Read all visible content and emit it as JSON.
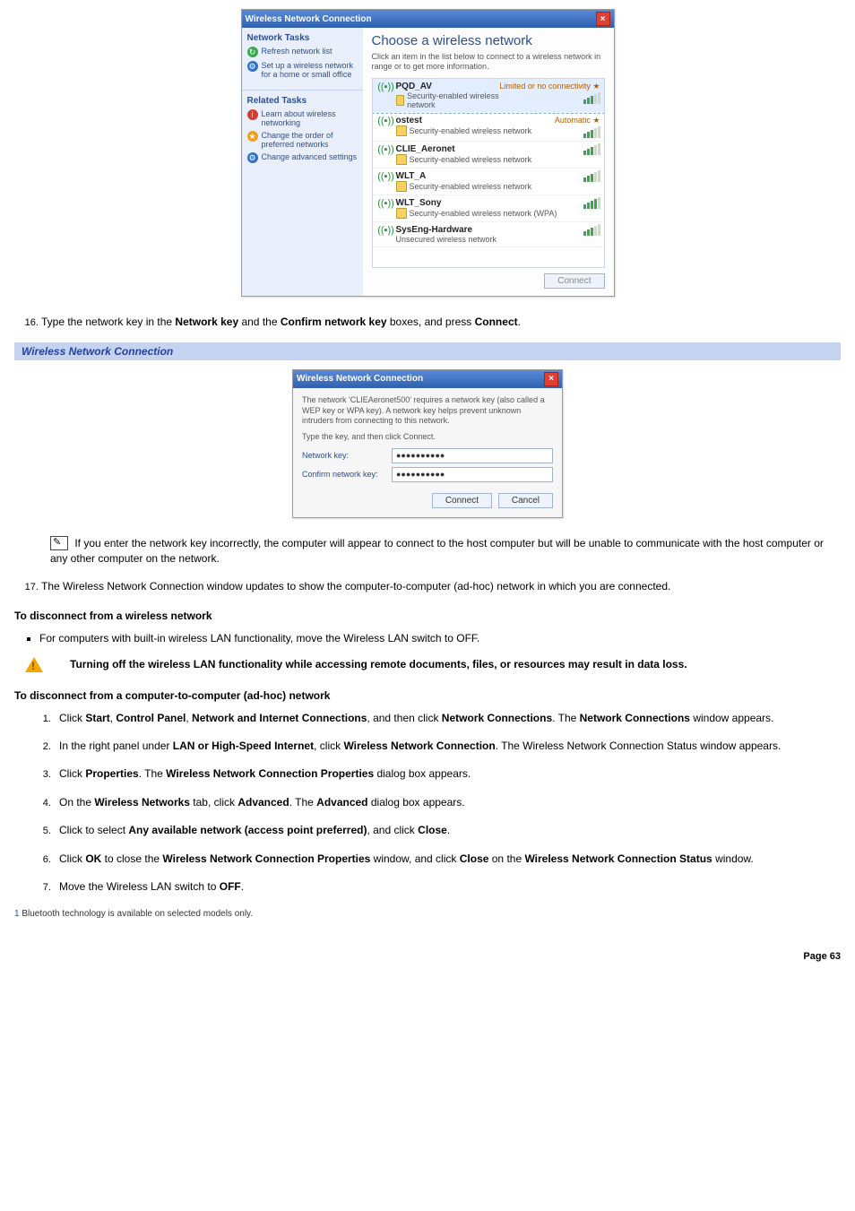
{
  "shot1": {
    "title": "Wireless Network Connection",
    "side": {
      "heading1": "Network Tasks",
      "item1": "Refresh network list",
      "item2": "Set up a wireless network for a home or small office",
      "heading2": "Related Tasks",
      "item3": "Learn about wireless networking",
      "item4": "Change the order of preferred networks",
      "item5": "Change advanced settings"
    },
    "mainTitle": "Choose a wireless network",
    "mainSub": "Click an item in the list below to connect to a wireless network in range or to get more information.",
    "connectBtn": "Connect",
    "networks": [
      {
        "name": "PQD_AV",
        "selected": true,
        "type": "Security-enabled wireless network",
        "badge": "Limited or no connectivity",
        "bars": 3
      },
      {
        "name": "ostest",
        "type": "Security-enabled wireless network",
        "badge": "Automatic",
        "bars": 3
      },
      {
        "name": "CLIE_Aeronet",
        "type": "Security-enabled wireless network",
        "badge": "",
        "bars": 3
      },
      {
        "name": "WLT_A",
        "type": "Security-enabled wireless network",
        "badge": "",
        "bars": 3
      },
      {
        "name": "WLT_Sony",
        "type": "Security-enabled wireless network (WPA)",
        "badge": "",
        "bars": 4
      },
      {
        "name": "SysEng-Hardware",
        "type": "Unsecured wireless network",
        "badge": "",
        "bars": 3,
        "unsecured": true
      }
    ]
  },
  "step16": {
    "text_a": "Type the network key in the ",
    "b1": "Network key",
    "text_b": " and the ",
    "b2": "Confirm network key",
    "text_c": " boxes, and press ",
    "b3": "Connect",
    "text_d": "."
  },
  "banner1": "Wireless Network Connection",
  "shot2": {
    "title": "Wireless Network Connection",
    "line1": "The network 'CLIEAeronet500' requires a network key (also called a WEP key or WPA key). A network key helps prevent unknown intruders from connecting to this network.",
    "line2": "Type the key, and then click Connect.",
    "label1": "Network key:",
    "label2": "Confirm network key:",
    "value": "●●●●●●●●●●",
    "btnConnect": "Connect",
    "btnCancel": "Cancel"
  },
  "note1": "If you enter the network key incorrectly, the computer will appear to connect to the host computer but will be unable to communicate with the host computer or any other computer on the network.",
  "step17": "The Wireless Network Connection window updates to show the computer-to-computer (ad-hoc) network in which you are connected.",
  "hdr_disconnect": "To disconnect from a wireless network",
  "bullet1": "For computers with built-in wireless LAN functionality, move the Wireless LAN switch to OFF.",
  "warning": "Turning off the wireless LAN functionality while accessing remote documents, files, or resources may result in data loss.",
  "hdr_adhoc": "To disconnect from a computer-to-computer (ad-hoc) network",
  "adhoc_steps": [
    "Click <b>Start</b>, <b>Control Panel</b>, <b>Network and Internet Connections</b>, and then click <b>Network Connections</b>. The <b>Network Connections</b> window appears.",
    "In the right panel under <b>LAN or High-Speed Internet</b>, click <b>Wireless Network Connection</b>. The Wireless Network Connection Status window appears.",
    "Click <b>Properties</b>. The <b>Wireless Network Connection Properties</b> dialog box appears.",
    "On the <b>Wireless Networks</b> tab, click <b>Advanced</b>. The <b>Advanced</b> dialog box appears.",
    "Click to select <b>Any available network (access point preferred)</b>, and click <b>Close</b>.",
    "Click <b>OK</b> to close the <b>Wireless Network Connection Properties</b> window, and click <b>Close</b> on the <b>Wireless Network Connection Status</b> window.",
    "Move the Wireless LAN switch to <b>OFF</b>."
  ],
  "footnote_link": "1",
  "footnote": " Bluetooth technology is available on selected models only.",
  "pagenum": "Page 63"
}
